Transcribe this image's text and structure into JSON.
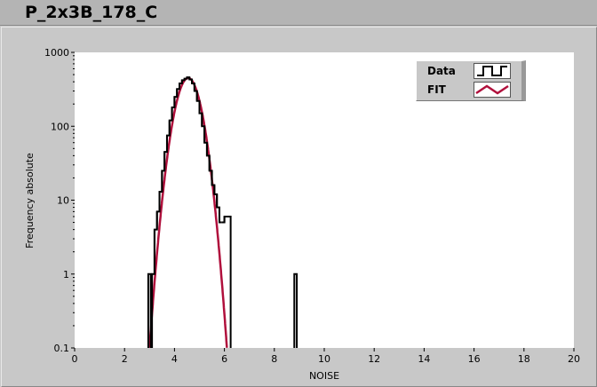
{
  "window": {
    "title": "P_2x3B_178_C"
  },
  "chart_data": {
    "type": "line",
    "xlabel": "NOISE",
    "ylabel": "Frequency absolute",
    "xlim": [
      0,
      20
    ],
    "ylim": [
      0.1,
      1000
    ],
    "yscale": "log",
    "grid": false,
    "legend_placement": "top-right",
    "xticks": [
      "0",
      "2",
      "4",
      "6",
      "8",
      "10",
      "12",
      "14",
      "16",
      "18",
      "20"
    ],
    "yticks": [
      "0.1",
      "1",
      "10",
      "100",
      "1000"
    ],
    "series": [
      {
        "name": "Data",
        "style": "step",
        "color": "#000000",
        "bins": [
          [
            2.95,
            1
          ],
          [
            3.05,
            0
          ],
          [
            3.1,
            1
          ],
          [
            3.2,
            4
          ],
          [
            3.3,
            7
          ],
          [
            3.4,
            13
          ],
          [
            3.5,
            25
          ],
          [
            3.6,
            45
          ],
          [
            3.7,
            75
          ],
          [
            3.8,
            120
          ],
          [
            3.9,
            180
          ],
          [
            4.0,
            250
          ],
          [
            4.1,
            320
          ],
          [
            4.2,
            380
          ],
          [
            4.3,
            420
          ],
          [
            4.4,
            440
          ],
          [
            4.5,
            460
          ],
          [
            4.6,
            430
          ],
          [
            4.7,
            380
          ],
          [
            4.8,
            300
          ],
          [
            4.9,
            220
          ],
          [
            5.0,
            150
          ],
          [
            5.1,
            100
          ],
          [
            5.2,
            60
          ],
          [
            5.3,
            40
          ],
          [
            5.4,
            25
          ],
          [
            5.5,
            16
          ],
          [
            5.6,
            12
          ],
          [
            5.7,
            8
          ],
          [
            5.8,
            5
          ],
          [
            5.9,
            5
          ],
          [
            6.0,
            6
          ],
          [
            6.1,
            6
          ],
          [
            6.25,
            0
          ],
          [
            8.8,
            1
          ],
          [
            8.9,
            0
          ]
        ]
      },
      {
        "name": "FIT",
        "style": "gaussian",
        "color": "#b0103c",
        "amplitude": 450,
        "mean": 4.55,
        "sigma": 0.378
      }
    ]
  }
}
